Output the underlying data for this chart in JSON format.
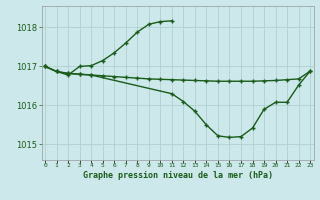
{
  "background_color": "#cce8ea",
  "grid_color": "#b0d0d0",
  "line_color": "#1a5c1a",
  "title": "Graphe pression niveau de la mer (hPa)",
  "ylabel_ticks": [
    1015,
    1016,
    1017,
    1018
  ],
  "xlim": [
    -0.3,
    23.3
  ],
  "ylim": [
    1014.6,
    1018.55
  ],
  "line1": {
    "x": [
      0,
      1,
      2,
      3,
      4,
      5,
      6,
      7,
      8,
      9,
      10,
      11
    ],
    "y": [
      1017.0,
      1016.87,
      1016.78,
      1017.0,
      1017.02,
      1017.15,
      1017.35,
      1017.6,
      1017.88,
      1018.08,
      1018.15,
      1018.17
    ]
  },
  "line2": {
    "x": [
      0,
      1,
      2,
      3,
      4,
      5,
      6,
      7,
      8,
      9,
      10,
      11,
      12,
      13,
      14,
      15,
      16,
      17,
      18,
      19,
      20,
      21,
      22,
      23
    ],
    "y": [
      1017.0,
      1016.87,
      1016.82,
      1016.8,
      1016.78,
      1016.76,
      1016.74,
      1016.72,
      1016.7,
      1016.68,
      1016.67,
      1016.66,
      1016.65,
      1016.64,
      1016.63,
      1016.62,
      1016.62,
      1016.62,
      1016.62,
      1016.63,
      1016.64,
      1016.66,
      1016.68,
      1016.88
    ]
  },
  "line3": {
    "x": [
      0,
      1,
      2,
      3,
      4,
      11,
      12,
      13,
      14,
      15,
      16,
      17,
      18,
      19,
      20,
      21,
      22,
      23
    ],
    "y": [
      1017.0,
      1016.87,
      1016.82,
      1016.8,
      1016.78,
      1016.3,
      1016.1,
      1015.85,
      1015.5,
      1015.22,
      1015.18,
      1015.2,
      1015.42,
      1015.9,
      1016.08,
      1016.08,
      1016.52,
      1016.88
    ]
  },
  "xtick_labels": [
    "0",
    "1",
    "2",
    "3",
    "4",
    "5",
    "6",
    "7",
    "8",
    "9",
    "10",
    "11",
    "12",
    "13",
    "14",
    "15",
    "16",
    "17",
    "18",
    "19",
    "20",
    "21",
    "22",
    "23"
  ]
}
